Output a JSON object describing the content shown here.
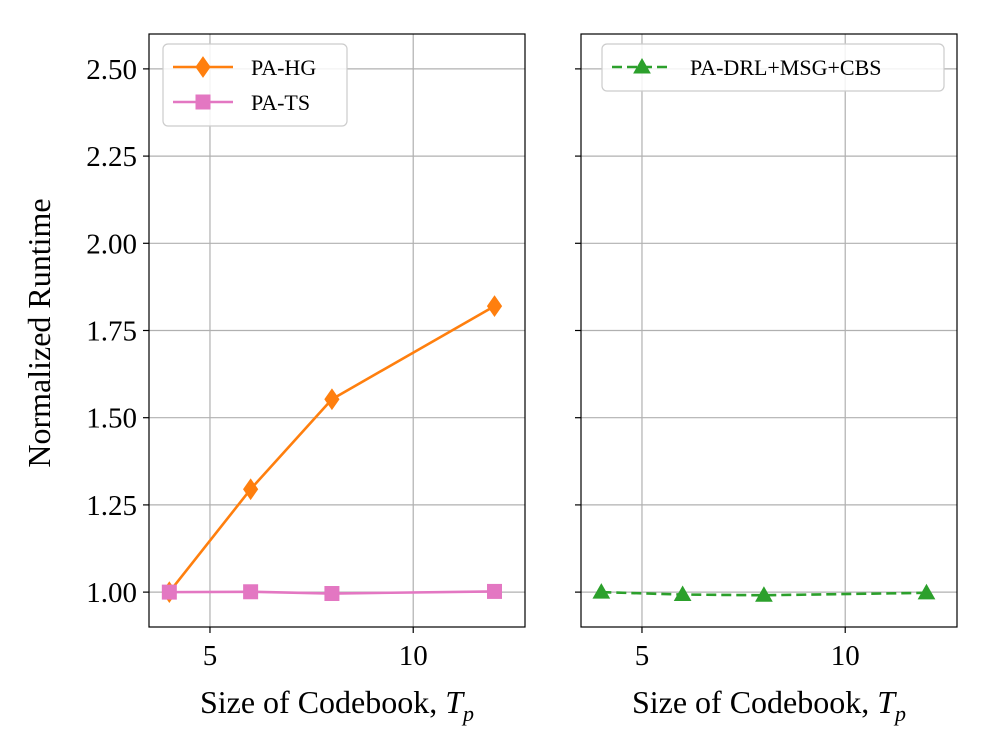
{
  "chart_data": [
    {
      "type": "line",
      "panel": "left",
      "xlabel": "Size of Codebook, ",
      "xlabel_var": "T",
      "xlabel_sub": "p",
      "ylabel": "Normalized Runtime",
      "xlim": [
        3.5,
        12.75
      ],
      "ylim": [
        0.9,
        2.6
      ],
      "xticks": [
        5,
        10
      ],
      "xtick_labels": [
        "5",
        "10"
      ],
      "yticks": [
        1.0,
        1.25,
        1.5,
        1.75,
        2.0,
        2.25,
        2.5
      ],
      "ytick_labels": [
        "1.00",
        "1.25",
        "1.50",
        "1.75",
        "2.00",
        "2.25",
        "2.50"
      ],
      "grid": true,
      "legend_position": "top-left",
      "series": [
        {
          "name": "PA-HG",
          "color": "#ff7f0e",
          "marker": "diamond",
          "linestyle": "solid",
          "x": [
            4,
            6,
            8,
            12
          ],
          "y": [
            1.0,
            1.295,
            1.553,
            1.82
          ]
        },
        {
          "name": "PA-TS",
          "color": "#e377c2",
          "marker": "square",
          "linestyle": "solid",
          "x": [
            4,
            6,
            8,
            12
          ],
          "y": [
            1.0,
            1.001,
            0.996,
            1.002
          ]
        }
      ]
    },
    {
      "type": "line",
      "panel": "right",
      "xlabel": "Size of Codebook, ",
      "xlabel_var": "T",
      "xlabel_sub": "p",
      "ylabel": "",
      "xlim": [
        3.5,
        12.75
      ],
      "ylim": [
        0.9,
        2.6
      ],
      "xticks": [
        5,
        10
      ],
      "xtick_labels": [
        "5",
        "10"
      ],
      "yticks": [
        1.0,
        1.25,
        1.5,
        1.75,
        2.0,
        2.25,
        2.5
      ],
      "ytick_labels": [],
      "grid": true,
      "legend_position": "top-right",
      "series": [
        {
          "name": "PA-DRL+MSG+CBS",
          "color": "#2ca02c",
          "marker": "triangle",
          "linestyle": "dashed",
          "x": [
            4,
            6,
            8,
            12
          ],
          "y": [
            1.0,
            0.993,
            0.991,
            0.998
          ]
        }
      ]
    }
  ]
}
